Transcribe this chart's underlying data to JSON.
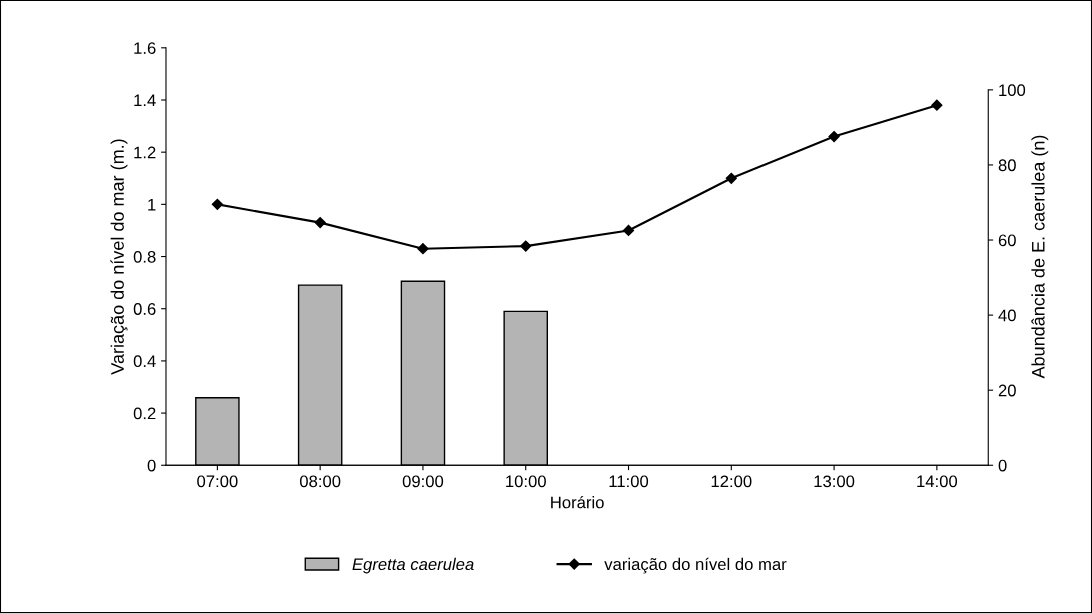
{
  "chart_data": {
    "type": "bar",
    "xlabel": "Horário",
    "ylabel": "Variação do nível do mar (m.)",
    "y2label": "Abundância de E. caerulea (n)",
    "categories": [
      "07:00",
      "08:00",
      "09:00",
      "10:00",
      "11:00",
      "12:00",
      "13:00",
      "14:00"
    ],
    "series": [
      {
        "name": "Egretta caerulea",
        "axis": "y2",
        "color": "#b4b4b4",
        "values": [
          18,
          48,
          49,
          41,
          null,
          null,
          null,
          null
        ]
      },
      {
        "name": "variação do nível do mar",
        "type": "line",
        "axis": "y",
        "color": "#000000",
        "marker": "diamond",
        "values": [
          1.0,
          0.93,
          0.83,
          0.84,
          0.9,
          1.1,
          1.26,
          1.38
        ]
      }
    ],
    "ylim": [
      0,
      1.6
    ],
    "yticks": [
      0,
      0.2,
      0.4,
      0.6,
      0.8,
      1,
      1.2,
      1.4,
      1.6
    ],
    "y2lim": [
      0,
      111.2
    ],
    "y2ticks": [
      0,
      20,
      40,
      60,
      80,
      100
    ],
    "grid": false,
    "legend": "bottom"
  }
}
